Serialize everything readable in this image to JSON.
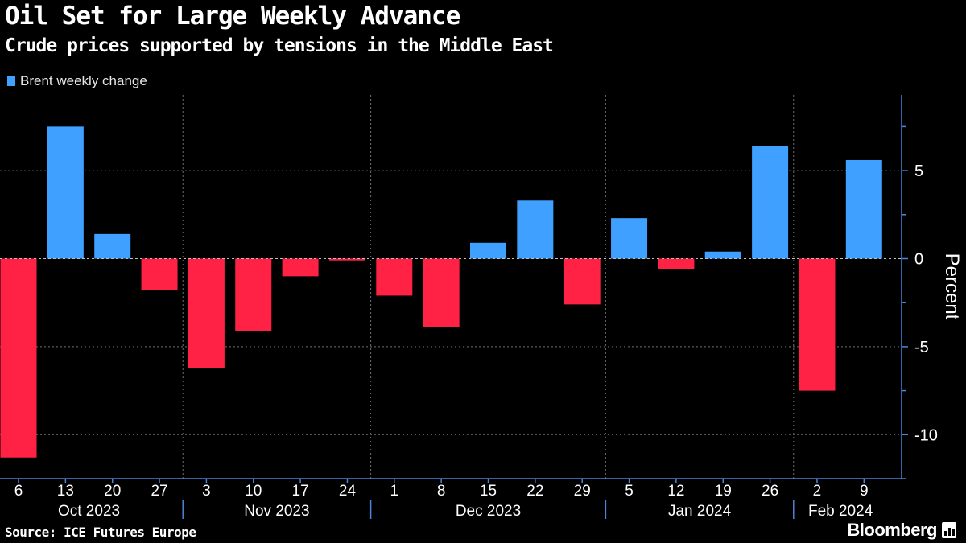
{
  "chart_data": {
    "type": "bar",
    "title": "Oil Set for Large Weekly Advance",
    "subtitle": "Crude prices supported by tensions in the Middle East",
    "ylabel": "Percent",
    "ylim": [
      -12.5,
      9.3
    ],
    "yticks": [
      -10,
      -5,
      0,
      5
    ],
    "grid": true,
    "legend_position": "top-left",
    "series": [
      {
        "name": "Brent weekly change"
      }
    ],
    "categories": [
      "6",
      "13",
      "20",
      "27",
      "3",
      "10",
      "17",
      "24",
      "1",
      "8",
      "15",
      "22",
      "29",
      "5",
      "12",
      "19",
      "26",
      "2",
      "9"
    ],
    "values": [
      -11.3,
      7.5,
      1.4,
      -1.8,
      -6.2,
      -4.1,
      -1.0,
      -0.1,
      -2.1,
      -3.9,
      0.9,
      3.3,
      -2.6,
      2.3,
      -0.6,
      0.4,
      6.4,
      -7.5,
      5.6
    ],
    "months": [
      {
        "label": "Oct 2023",
        "start": 0,
        "end": 3
      },
      {
        "label": "Nov 2023",
        "start": 4,
        "end": 7
      },
      {
        "label": "Dec 2023",
        "start": 8,
        "end": 12
      },
      {
        "label": "Jan 2024",
        "start": 13,
        "end": 16
      },
      {
        "label": "Feb 2024",
        "start": 17,
        "end": 18
      }
    ],
    "colors": {
      "positive": "#3fa0ff",
      "negative": "#ff2244",
      "grid": "#6e6e6e",
      "axis": "#4b84d8"
    }
  },
  "footer": {
    "source": "Source: ICE Futures Europe",
    "brand": "Bloomberg"
  }
}
